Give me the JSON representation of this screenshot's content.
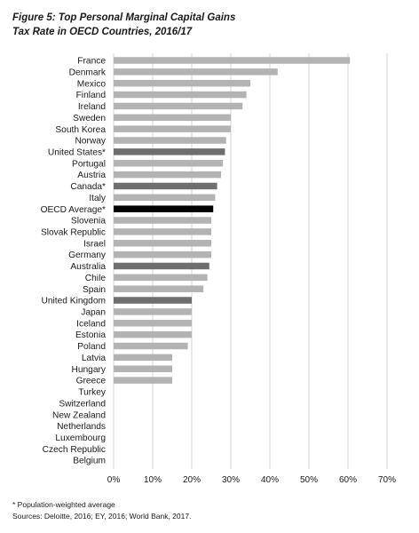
{
  "title": {
    "line1": "Figure 5: Top Personal Marginal Capital Gains",
    "line2": "Tax Rate in OECD Countries, 2016/17"
  },
  "colors": {
    "default_bar": "#b3b3b3",
    "highlight_bar": "#6e6e6e",
    "average_bar": "#000000",
    "gridline": "#d4d4d4"
  },
  "chart_data": {
    "type": "bar",
    "orientation": "horizontal",
    "categories": [
      "France",
      "Denmark",
      "Mexico",
      "Finland",
      "Ireland",
      "Sweden",
      "South Korea",
      "Norway",
      "United States*",
      "Portugal",
      "Austria",
      "Canada*",
      "Italy",
      "OECD Average*",
      "Slovenia",
      "Slovak Republic",
      "Israel",
      "Germany",
      "Australia",
      "Chile",
      "Spain",
      "United Kingdom",
      "Japan",
      "Iceland",
      "Estonia",
      "Poland",
      "Latvia",
      "Hungary",
      "Greece",
      "Turkey",
      "Switzerland",
      "New Zealand",
      "Netherlands",
      "Luxembourg",
      "Czech Republic",
      "Belgium"
    ],
    "values": [
      60.5,
      42,
      35,
      34,
      33,
      30,
      30,
      28.8,
      28.5,
      28,
      27.5,
      26.5,
      26,
      25.5,
      25,
      25,
      25,
      25,
      24.5,
      24,
      23,
      20,
      20,
      20,
      20,
      19,
      15,
      15,
      15,
      0,
      0,
      0,
      0,
      0,
      0,
      0
    ],
    "bar_style": [
      "default",
      "default",
      "default",
      "default",
      "default",
      "default",
      "default",
      "default",
      "highlight",
      "default",
      "default",
      "highlight",
      "default",
      "average",
      "default",
      "default",
      "default",
      "default",
      "highlight",
      "default",
      "default",
      "highlight",
      "default",
      "default",
      "default",
      "default",
      "default",
      "default",
      "default",
      "default",
      "default",
      "default",
      "default",
      "default",
      "default",
      "default"
    ],
    "x_ticks": [
      "0%",
      "10%",
      "20%",
      "30%",
      "40%",
      "50%",
      "60%",
      "70%"
    ],
    "xlim": [
      0,
      70
    ],
    "grid": true
  },
  "footer": {
    "note": "* Population-weighted average",
    "sources": "Sources: Deloitte, 2016; EY, 2016; World Bank, 2017."
  }
}
